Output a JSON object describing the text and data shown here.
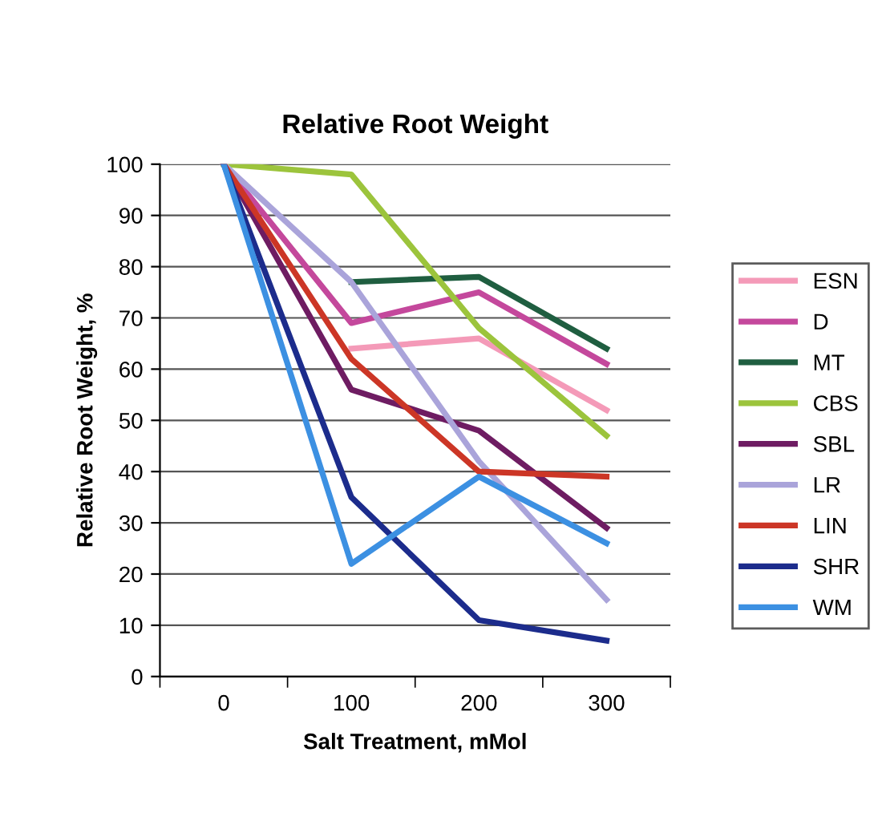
{
  "chart_data": {
    "type": "line",
    "title": "Relative Root Weight",
    "xlabel": "Salt Treatment, mMol",
    "ylabel": "Relative Root Weight, %",
    "categories": [
      "0",
      "100",
      "200",
      "300"
    ],
    "series": [
      {
        "name": "ESN",
        "color": "#f49ab8",
        "values": [
          null,
          64,
          66,
          52
        ]
      },
      {
        "name": "D",
        "color": "#c4489c",
        "values": [
          100,
          69,
          75,
          61
        ]
      },
      {
        "name": "MT",
        "color": "#1f5e40",
        "values": [
          null,
          77,
          78,
          64
        ]
      },
      {
        "name": "CBS",
        "color": "#9cc43c",
        "values": [
          100,
          98,
          68,
          47
        ]
      },
      {
        "name": "SBL",
        "color": "#6e1c62",
        "values": [
          100,
          56,
          48,
          29
        ]
      },
      {
        "name": "LR",
        "color": "#aaa4da",
        "values": [
          100,
          77,
          42,
          15
        ]
      },
      {
        "name": "LIN",
        "color": "#cc3626",
        "values": [
          100,
          62,
          40,
          39
        ]
      },
      {
        "name": "SHR",
        "color": "#1c2c8c",
        "values": [
          100,
          35,
          11,
          7
        ]
      },
      {
        "name": "WM",
        "color": "#3c90e2",
        "values": [
          100,
          22,
          39,
          26
        ]
      }
    ],
    "ylim": [
      0,
      100
    ],
    "yticks": [
      0,
      10,
      20,
      30,
      40,
      50,
      60,
      70,
      80,
      90,
      100
    ],
    "grid": "y",
    "legend": "right",
    "marker": "none",
    "line_style": "solid"
  }
}
